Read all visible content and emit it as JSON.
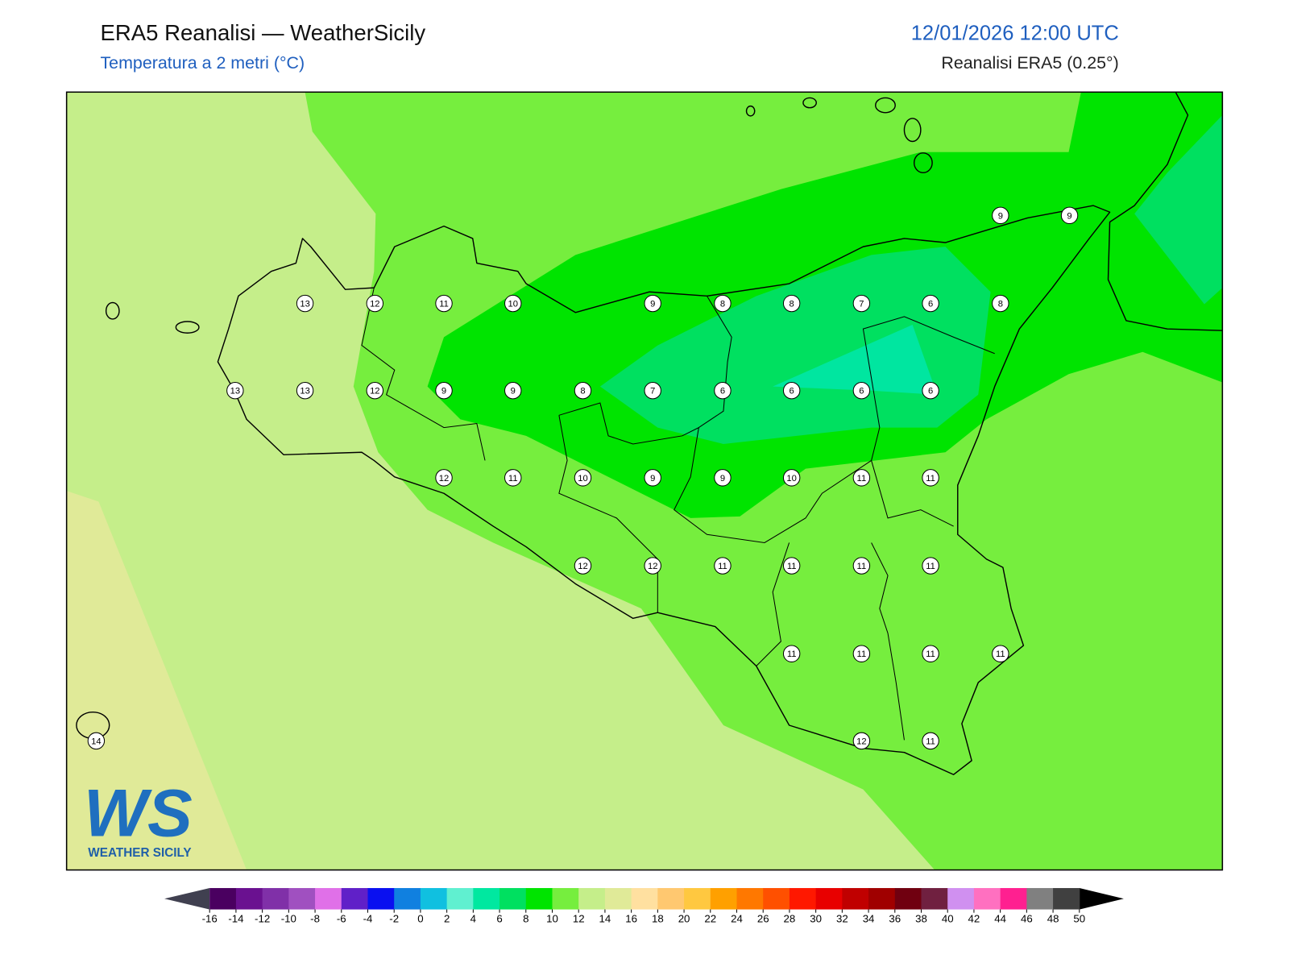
{
  "header": {
    "title": "ERA5 Reanalisi — WeatherSicily",
    "subtitle": "Temperatura a 2 metri (°C)",
    "datetime": "12/01/2026 12:00 UTC",
    "source": "Reanalisi ERA5 (0.25°)"
  },
  "stations": {
    "values": [
      13,
      12,
      11,
      10,
      9,
      8,
      8,
      7,
      6,
      8,
      9,
      9,
      13,
      13,
      12,
      9,
      9,
      8,
      7,
      6,
      6,
      6,
      6,
      12,
      11,
      10,
      9,
      9,
      10,
      11,
      11,
      12,
      12,
      11,
      11,
      11,
      11,
      11,
      11,
      11,
      11,
      14,
      12,
      11
    ]
  },
  "colorbar": {
    "ticks": [
      -16,
      -14,
      -12,
      -10,
      -8,
      -6,
      -4,
      -2,
      0,
      2,
      4,
      6,
      8,
      10,
      12,
      14,
      16,
      18,
      20,
      22,
      24,
      26,
      28,
      30,
      32,
      34,
      36,
      38,
      40,
      42,
      44,
      46,
      48,
      50
    ],
    "colors": [
      "#4a0060",
      "#6a1190",
      "#8030a8",
      "#a050c0",
      "#e070e8",
      "#6020c8",
      "#0a10f0",
      "#1080e0",
      "#10c0e0",
      "#60f0d0",
      "#00e8a0",
      "#00e060",
      "#00e400",
      "#76ee3e",
      "#c5ee8a",
      "#e0ea98",
      "#ffe0a0",
      "#ffc870",
      "#ffc840",
      "#ffa000",
      "#ff7800",
      "#ff5000",
      "#ff1800",
      "#e80000",
      "#c00000",
      "#a00000",
      "#700010",
      "#702040",
      "#d090f0",
      "#ff70c0",
      "#ff2090",
      "#808080",
      "#404040"
    ],
    "under_color": "#404050",
    "over_color": "#000000"
  },
  "logo": {
    "text": "WS",
    "subtext": "WEATHER SICILY"
  }
}
